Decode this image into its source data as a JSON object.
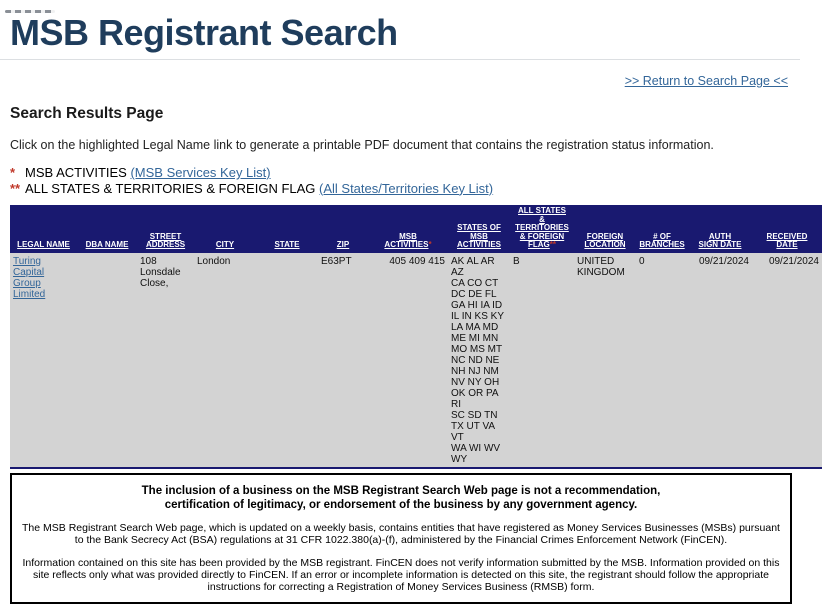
{
  "colors": {
    "title": "#1f3d5c",
    "header_bg": "#191970",
    "header_text": "#ffffff",
    "row_bg": "#d3d3d3",
    "link": "#336699",
    "marker": "#c0392b",
    "rule": "#dcdfe2",
    "footer_border": "#000000"
  },
  "header": {
    "title": "MSB Registrant Search",
    "return_link": ">> Return to Search Page <<"
  },
  "results": {
    "heading": "Search Results Page",
    "instruction": "Click on the highlighted Legal Name link to generate a printable PDF document that contains the registration status information.",
    "keys": [
      {
        "marker": "*",
        "label": "MSB ACTIVITIES ",
        "link_label": "(MSB Services Key List)"
      },
      {
        "marker": "**",
        "label": "ALL STATES & TERRITORIES & FOREIGN FLAG ",
        "link_label": "(All States/Territories Key List)"
      }
    ]
  },
  "table": {
    "columns": [
      {
        "label": [
          "LEGAL NAME"
        ]
      },
      {
        "label": [
          "DBA NAME"
        ]
      },
      {
        "label": [
          "STREET",
          "ADDRESS"
        ]
      },
      {
        "label": [
          "CITY"
        ]
      },
      {
        "label": [
          "STATE"
        ]
      },
      {
        "label": [
          "ZIP"
        ]
      },
      {
        "label": [
          "MSB",
          "ACTIVITIES"
        ],
        "marker": "*"
      },
      {
        "label": [
          "STATES OF",
          "MSB",
          "ACTIVITIES"
        ]
      },
      {
        "label": [
          "ALL STATES",
          "&",
          "TERRITORIES",
          "& FOREIGN",
          "FLAG"
        ],
        "marker": "**"
      },
      {
        "label": [
          "FOREIGN",
          "LOCATION"
        ]
      },
      {
        "label": [
          "# OF",
          "BRANCHES"
        ]
      },
      {
        "label": [
          "AUTH",
          "SIGN DATE"
        ]
      },
      {
        "label": [
          "RECEIVED",
          "DATE"
        ]
      }
    ],
    "row": {
      "legal_name": "Turing Capital Group Limited",
      "dba_name": "",
      "street_address": [
        "108 Lonsdale",
        "Close,"
      ],
      "city": "London",
      "state": "",
      "zip": "E63PT",
      "msb_activities": "405 409 415",
      "states_of_msb_activities": [
        "AK AL AR AZ",
        "CA CO CT",
        "DC DE FL",
        "GA HI IA ID",
        "IL IN KS KY",
        "LA MA MD",
        "ME MI MN",
        "MO MS MT",
        "NC ND NE",
        "NH NJ NM",
        "NV NY OH",
        "OK OR PA RI",
        "SC SD TN",
        "TX UT VA VT",
        "WA WI WV",
        "WY"
      ],
      "all_states_territories_foreign_flag": "B",
      "num_branches": "0",
      "foreign_location": "UNITED KINGDOM",
      "auth_sign_date": "09/21/2024",
      "received_date": "09/21/2024"
    }
  },
  "footer": {
    "notice_bold": "The inclusion of a business on the MSB Registrant Search Web page is not a recommendation, certification of legitimacy, or endorsement of the business by any government agency.",
    "paragraph_weekly": "The MSB Registrant Search Web page, which is updated on a weekly basis, contains entities that have registered as Money Services Businesses (MSBs) pursuant to the Bank Secrecy Act (BSA) regulations at 31 CFR 1022.380(a)-(f), administered by the Financial Crimes Enforcement Network (FinCEN).",
    "paragraph_disclaimer": "Information contained on this site has been provided by the MSB registrant. FinCEN does not verify information submitted by the MSB. Information provided on this site reflects only what was provided directly to FinCEN. If an error or incomplete information is detected on this site, the registrant should follow the appropriate instructions for correcting a Registration of Money Services Business (RMSB) form."
  }
}
